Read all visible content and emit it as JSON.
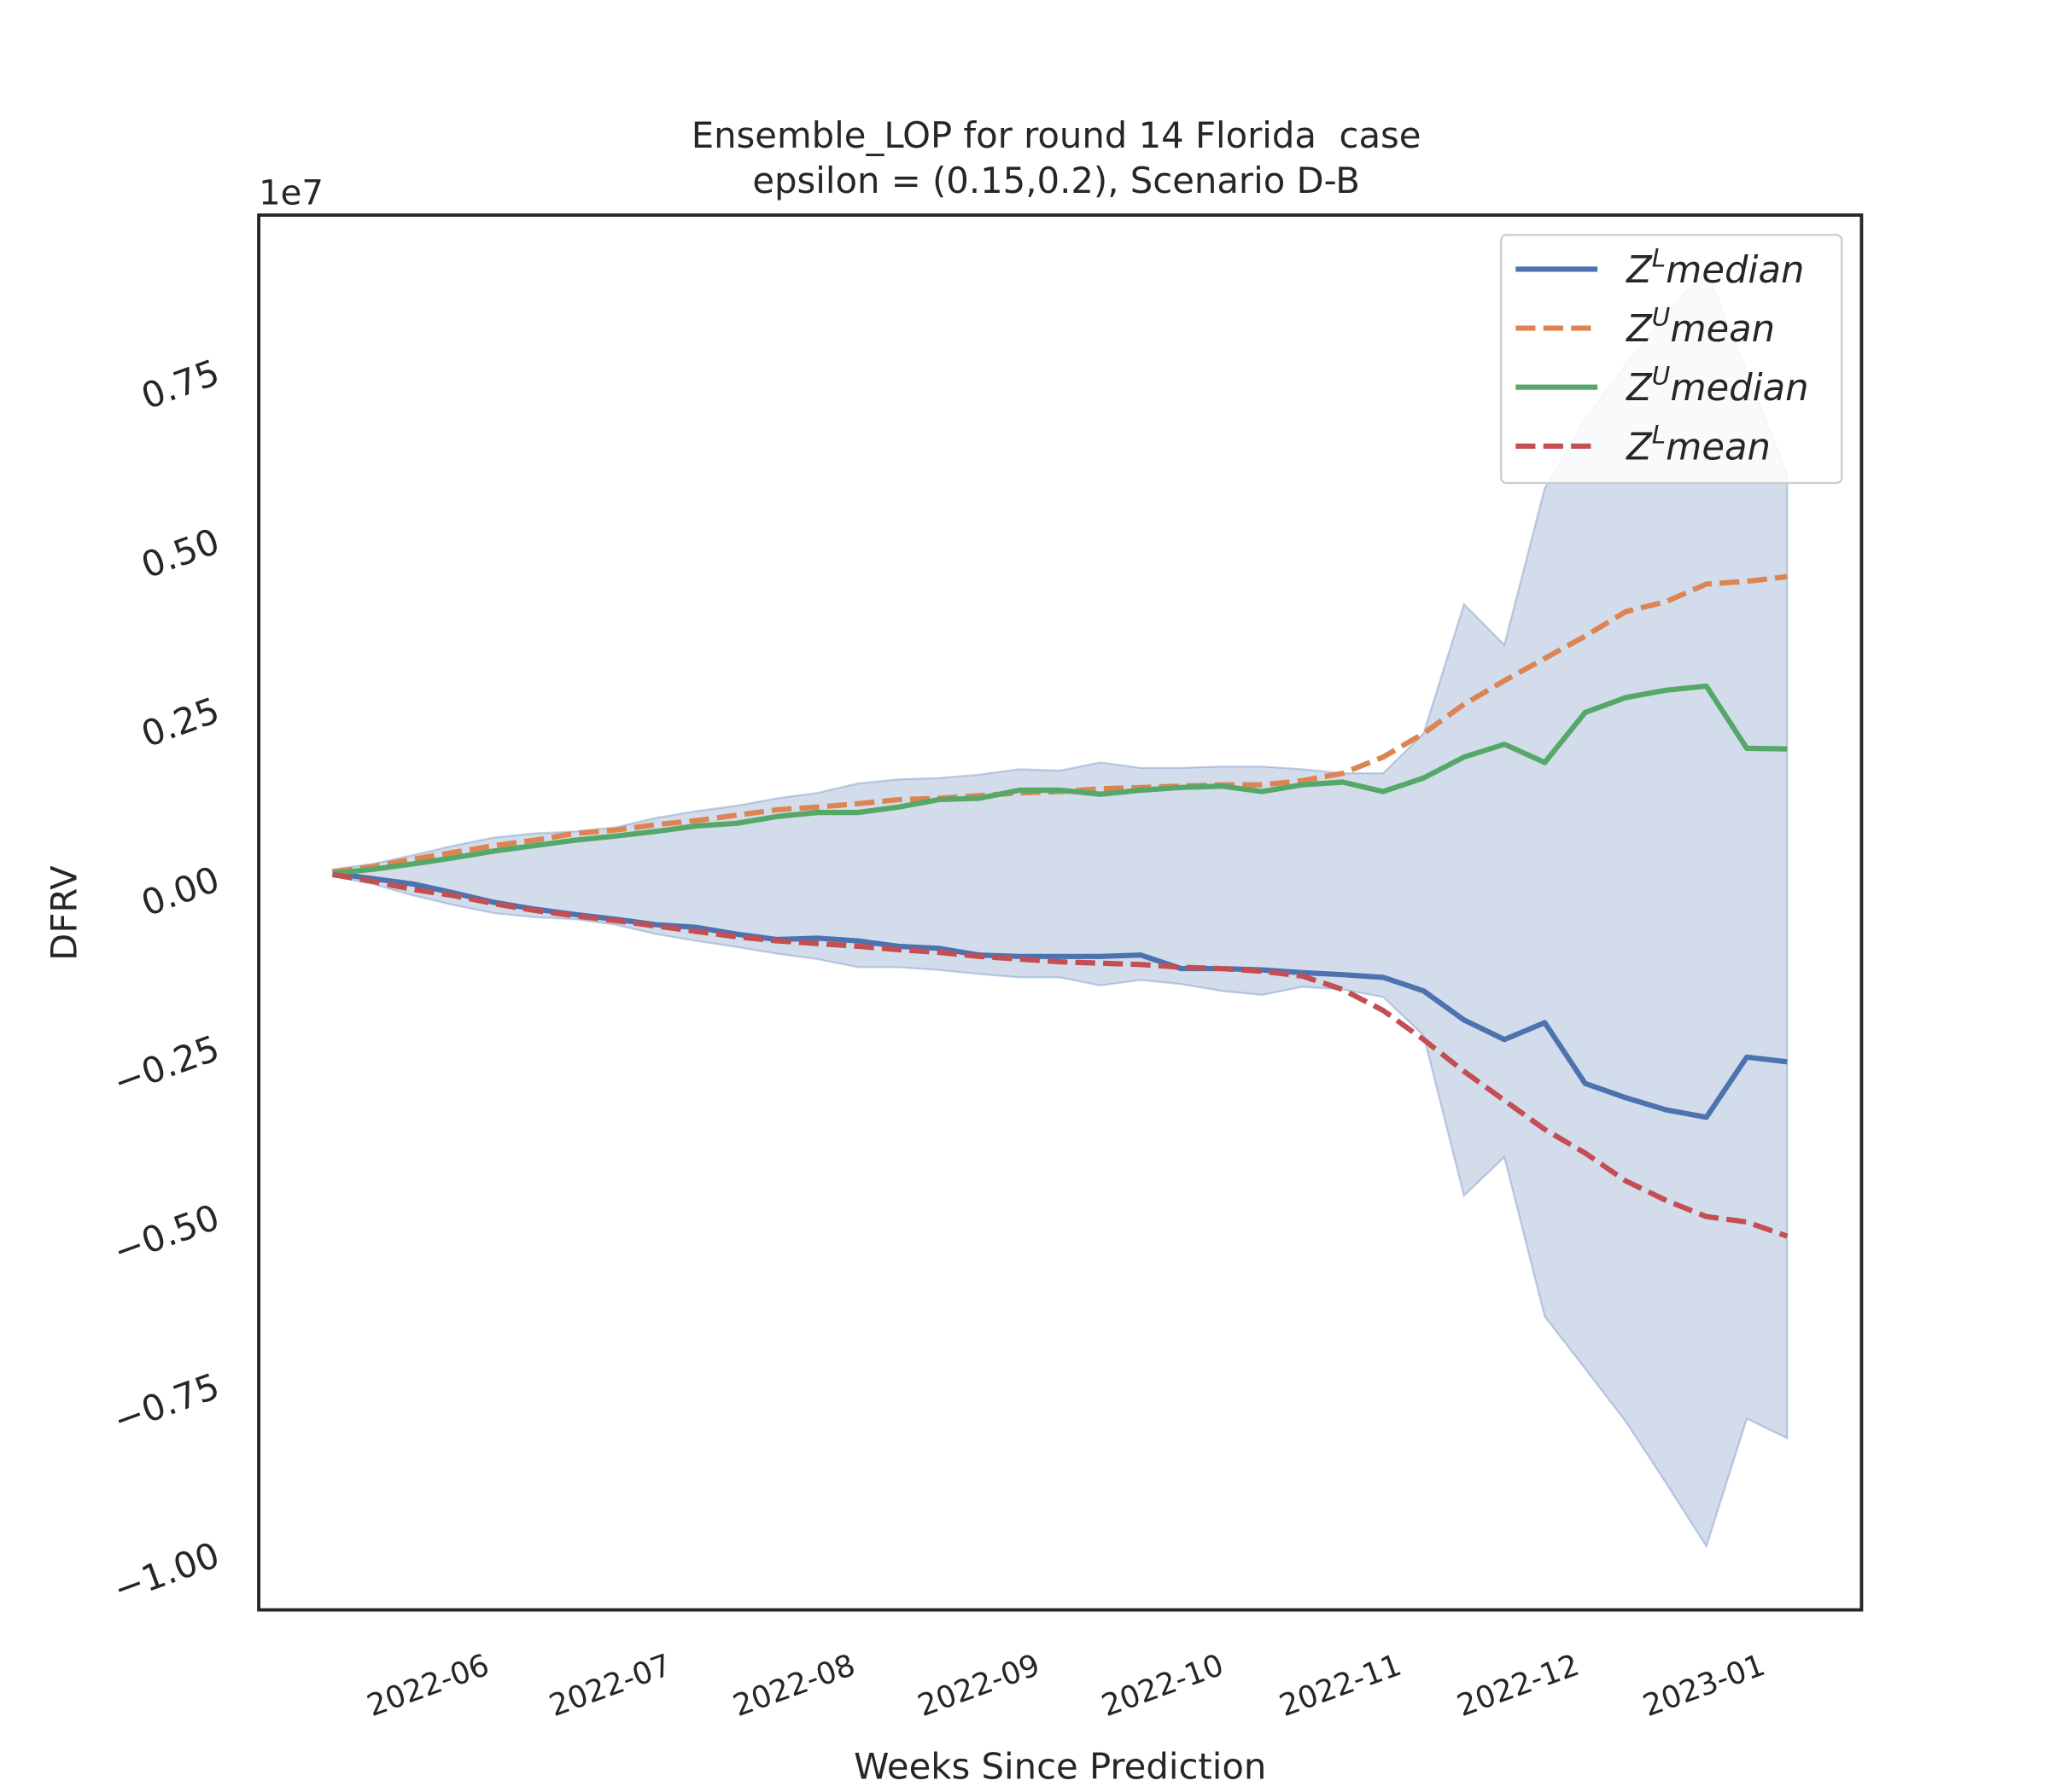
{
  "chart_data": {
    "type": "line",
    "title": "Ensemble_LOP for round 14 Florida  case",
    "subtitle": "epsilon = (0.15,0.2), Scenario D-B",
    "x_label": "Weeks Since Prediction",
    "y_label": "DFRV",
    "y_offset_label": "1e7",
    "x": [
      0,
      1,
      2,
      3,
      4,
      5,
      6,
      7,
      8,
      9,
      10,
      11,
      12,
      13,
      14,
      15,
      16,
      17,
      18,
      19,
      20,
      21,
      22,
      23,
      24,
      25,
      26,
      27,
      28,
      29,
      30,
      31,
      32,
      33,
      34,
      35,
      36
    ],
    "xlim": [
      -1.83,
      37.84
    ],
    "xticks": [
      {
        "value": 3.92,
        "label": "2022-06"
      },
      {
        "value": 8.43,
        "label": "2022-07"
      },
      {
        "value": 12.98,
        "label": "2022-08"
      },
      {
        "value": 17.55,
        "label": "2022-09"
      },
      {
        "value": 22.1,
        "label": "2022-10"
      },
      {
        "value": 26.5,
        "label": "2022-11"
      },
      {
        "value": 30.9,
        "label": "2022-12"
      },
      {
        "value": 35.5,
        "label": "2023-01"
      }
    ],
    "ylim": [
      -1.086,
      0.978
    ],
    "yticks": [
      {
        "value": -1.0,
        "label": "−1.00"
      },
      {
        "value": -0.75,
        "label": "−0.75"
      },
      {
        "value": -0.5,
        "label": "−0.50"
      },
      {
        "value": -0.25,
        "label": "−0.25"
      },
      {
        "value": 0,
        "label": "0.00"
      },
      0.25,
      {
        "value": 0.5,
        "label": "0.50"
      },
      0.75
    ],
    "grid": false,
    "legend": "upper right",
    "band": {
      "color": "#4c72b0",
      "upper": [
        0.01,
        0.018,
        0.031,
        0.045,
        0.057,
        0.063,
        0.066,
        0.072,
        0.086,
        0.096,
        0.104,
        0.115,
        0.123,
        0.137,
        0.143,
        0.145,
        0.15,
        0.158,
        0.156,
        0.168,
        0.16,
        0.16,
        0.162,
        0.162,
        0.158,
        0.152,
        0.152,
        0.211,
        0.402,
        0.342,
        0.574,
        0.676,
        0.756,
        0.832,
        0.896,
        0.746,
        0.594
      ],
      "lower": [
        0.0,
        -0.012,
        -0.029,
        -0.043,
        -0.055,
        -0.061,
        -0.064,
        -0.072,
        -0.086,
        -0.096,
        -0.105,
        -0.115,
        -0.123,
        -0.135,
        -0.135,
        -0.139,
        -0.145,
        -0.15,
        -0.15,
        -0.162,
        -0.154,
        -0.16,
        -0.17,
        -0.176,
        -0.164,
        -0.168,
        -0.179,
        -0.236,
        -0.473,
        -0.416,
        -0.652,
        -0.729,
        -0.807,
        -0.898,
        -0.992,
        -0.803,
        -0.832
      ]
    },
    "series": [
      {
        "name": "ZLmedian",
        "color": "#4c72b0",
        "linestyle": "solid",
        "values": [
          0.004,
          -0.004,
          -0.012,
          -0.025,
          -0.039,
          -0.049,
          -0.057,
          -0.064,
          -0.072,
          -0.076,
          -0.086,
          -0.094,
          -0.092,
          -0.096,
          -0.104,
          -0.107,
          -0.117,
          -0.119,
          -0.119,
          -0.119,
          -0.117,
          -0.137,
          -0.137,
          -0.139,
          -0.143,
          -0.146,
          -0.15,
          -0.17,
          -0.213,
          -0.242,
          -0.217,
          -0.307,
          -0.328,
          -0.346,
          -0.357,
          -0.268,
          -0.275
        ]
      },
      {
        "name": "ZUmean",
        "color": "#dd8452",
        "linestyle": "dashed",
        "values": [
          0.006,
          0.014,
          0.025,
          0.035,
          0.045,
          0.053,
          0.063,
          0.068,
          0.076,
          0.082,
          0.09,
          0.098,
          0.102,
          0.107,
          0.113,
          0.115,
          0.119,
          0.123,
          0.125,
          0.129,
          0.131,
          0.133,
          0.135,
          0.135,
          0.141,
          0.152,
          0.176,
          0.211,
          0.254,
          0.289,
          0.322,
          0.355,
          0.391,
          0.406,
          0.432,
          0.436,
          0.443
        ]
      },
      {
        "name": "ZUmedian",
        "color": "#55a868",
        "linestyle": "solid",
        "values": [
          0.004,
          0.01,
          0.018,
          0.027,
          0.037,
          0.045,
          0.053,
          0.059,
          0.066,
          0.074,
          0.078,
          0.088,
          0.094,
          0.094,
          0.102,
          0.113,
          0.115,
          0.127,
          0.127,
          0.121,
          0.127,
          0.131,
          0.133,
          0.125,
          0.135,
          0.139,
          0.125,
          0.145,
          0.176,
          0.195,
          0.168,
          0.242,
          0.264,
          0.275,
          0.281,
          0.189,
          0.188
        ]
      },
      {
        "name": "ZLmean",
        "color": "#c44e52",
        "linestyle": "dashed",
        "values": [
          0.002,
          -0.008,
          -0.02,
          -0.029,
          -0.041,
          -0.051,
          -0.059,
          -0.066,
          -0.074,
          -0.082,
          -0.09,
          -0.096,
          -0.1,
          -0.104,
          -0.109,
          -0.113,
          -0.119,
          -0.123,
          -0.127,
          -0.129,
          -0.131,
          -0.135,
          -0.137,
          -0.141,
          -0.148,
          -0.168,
          -0.199,
          -0.242,
          -0.289,
          -0.332,
          -0.375,
          -0.41,
          -0.451,
          -0.48,
          -0.504,
          -0.512,
          -0.533
        ]
      }
    ]
  }
}
